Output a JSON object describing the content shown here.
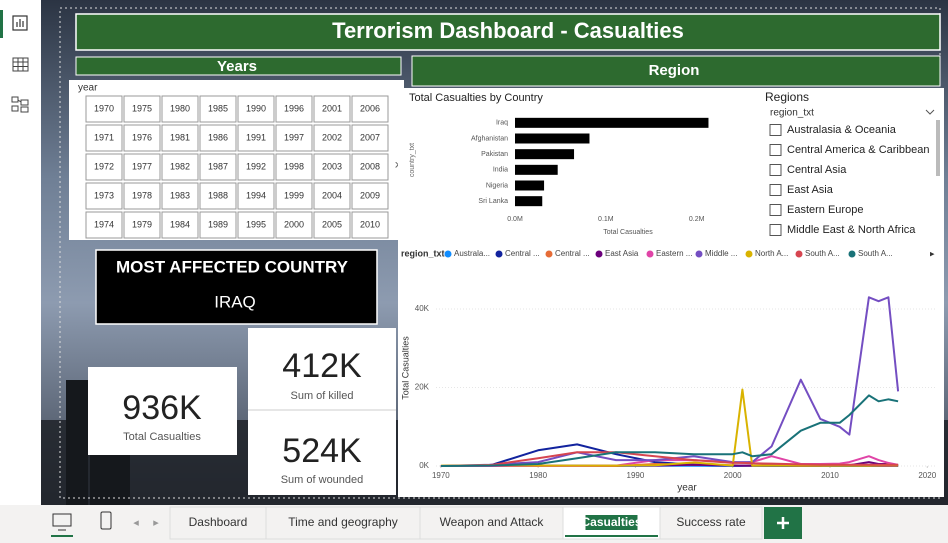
{
  "header": {
    "title": "Terrorism Dashboard - Casualties"
  },
  "years_slicer": {
    "title": "Years",
    "field": "year",
    "rows": [
      [
        1970,
        1975,
        1980,
        1985,
        1990,
        1996,
        2001,
        2006
      ],
      [
        1971,
        1976,
        1981,
        1986,
        1991,
        1997,
        2002,
        2007
      ],
      [
        1972,
        1977,
        1982,
        1987,
        1992,
        1998,
        2003,
        2008
      ],
      [
        1973,
        1978,
        1983,
        1988,
        1994,
        1999,
        2004,
        2009
      ],
      [
        1974,
        1979,
        1984,
        1989,
        1995,
        2000,
        2005,
        2010
      ]
    ]
  },
  "region_title": "Region",
  "most_affected": {
    "label": "MOST AFFECTED COUNTRY",
    "value": "IRAQ"
  },
  "cards": [
    {
      "value": "936K",
      "label": "Total Casualties"
    },
    {
      "value": "412K",
      "label": "Sum of killed"
    },
    {
      "value": "524K",
      "label": "Sum of wounded"
    }
  ],
  "regions_slicer": {
    "title": "Regions",
    "field": "region_txt",
    "items": [
      "Australasia & Oceania",
      "Central America & Caribbean",
      "Central Asia",
      "East Asia",
      "Eastern Europe",
      "Middle East & North Africa"
    ]
  },
  "tabs": {
    "items": [
      "Dashboard",
      "Time and geography",
      "Weapon and Attack",
      "Casualties",
      "Success rate"
    ],
    "active": "Casualties"
  },
  "chart_data": [
    {
      "type": "bar",
      "orientation": "horizontal",
      "title": "Total Casualties by Country",
      "x_label": "Total Casualties",
      "y_label": "country_txt",
      "categories": [
        "Iraq",
        "Afghanistan",
        "Pakistan",
        "India",
        "Nigeria",
        "Sri Lanka"
      ],
      "values": [
        213000,
        82000,
        65000,
        47000,
        32000,
        30000
      ],
      "color": "#000000",
      "xlim": [
        0,
        240000
      ],
      "xticks": [
        {
          "value": 0,
          "label": "0.0M"
        },
        {
          "value": 100000,
          "label": "0.1M"
        },
        {
          "value": 200000,
          "label": "0.2M"
        }
      ]
    },
    {
      "type": "line",
      "x_label": "year",
      "y_label": "Total Casualties",
      "legend_title": "region_txt",
      "x": [
        1970,
        1975,
        1980,
        1984,
        1988,
        1992,
        1996,
        2000,
        2001,
        2002,
        2004,
        2007,
        2009,
        2011,
        2012,
        2014,
        2015,
        2016,
        2017
      ],
      "series": [
        {
          "name": "Australa...",
          "color": "#118DFF",
          "values": [
            0,
            0,
            0,
            0,
            0,
            50,
            50,
            0,
            0,
            50,
            0,
            0,
            0,
            0,
            0,
            0,
            0,
            0,
            0
          ]
        },
        {
          "name": "Central ...",
          "color": "#12239E",
          "values": [
            0,
            100,
            4000,
            5500,
            3000,
            1000,
            300,
            100,
            100,
            100,
            50,
            50,
            50,
            50,
            50,
            50,
            50,
            50,
            50
          ]
        },
        {
          "name": "Central ...",
          "color": "#E66C37",
          "values": [
            0,
            0,
            0,
            0,
            0,
            500,
            300,
            200,
            100,
            100,
            200,
            50,
            50,
            100,
            100,
            50,
            50,
            50,
            50
          ]
        },
        {
          "name": "East Asia",
          "color": "#6B007B",
          "values": [
            0,
            0,
            100,
            100,
            100,
            100,
            300,
            100,
            100,
            100,
            100,
            100,
            100,
            300,
            200,
            1000,
            500,
            500,
            200
          ]
        },
        {
          "name": "Eastern ...",
          "color": "#E044A7",
          "values": [
            0,
            0,
            0,
            0,
            100,
            1500,
            1500,
            1000,
            800,
            1000,
            2500,
            500,
            500,
            600,
            1000,
            2500,
            1500,
            800,
            300
          ]
        },
        {
          "name": "Middle ...",
          "color": "#744EC2",
          "values": [
            0,
            300,
            1000,
            3500,
            1500,
            1500,
            2500,
            1000,
            1000,
            1000,
            5000,
            22000,
            12000,
            10000,
            8000,
            43000,
            42000,
            43000,
            19000
          ]
        },
        {
          "name": "North A...",
          "color": "#D9B300",
          "values": [
            100,
            200,
            100,
            100,
            100,
            200,
            900,
            100,
            19500,
            100,
            100,
            100,
            100,
            100,
            100,
            100,
            200,
            300,
            200
          ]
        },
        {
          "name": "South A...",
          "color": "#D64550",
          "values": [
            0,
            200,
            2000,
            3500,
            3500,
            2500,
            1500,
            800,
            800,
            700,
            600,
            400,
            300,
            300,
            300,
            300,
            300,
            300,
            300
          ]
        },
        {
          "name": "South A...",
          "color": "#197278",
          "values": [
            0,
            100,
            500,
            2000,
            3500,
            3500,
            3000,
            3000,
            3500,
            2500,
            3000,
            9000,
            11000,
            11000,
            13000,
            18000,
            16500,
            17000,
            16500
          ]
        }
      ],
      "xlim": [
        1969.5,
        2021
      ],
      "xticks": [
        1970,
        1980,
        1990,
        2000,
        2010,
        2020
      ],
      "ylim": [
        0,
        46000
      ],
      "yticks": [
        {
          "value": 0,
          "label": "0K"
        },
        {
          "value": 20000,
          "label": "20K"
        },
        {
          "value": 40000,
          "label": "40K"
        }
      ],
      "grid": true
    }
  ]
}
